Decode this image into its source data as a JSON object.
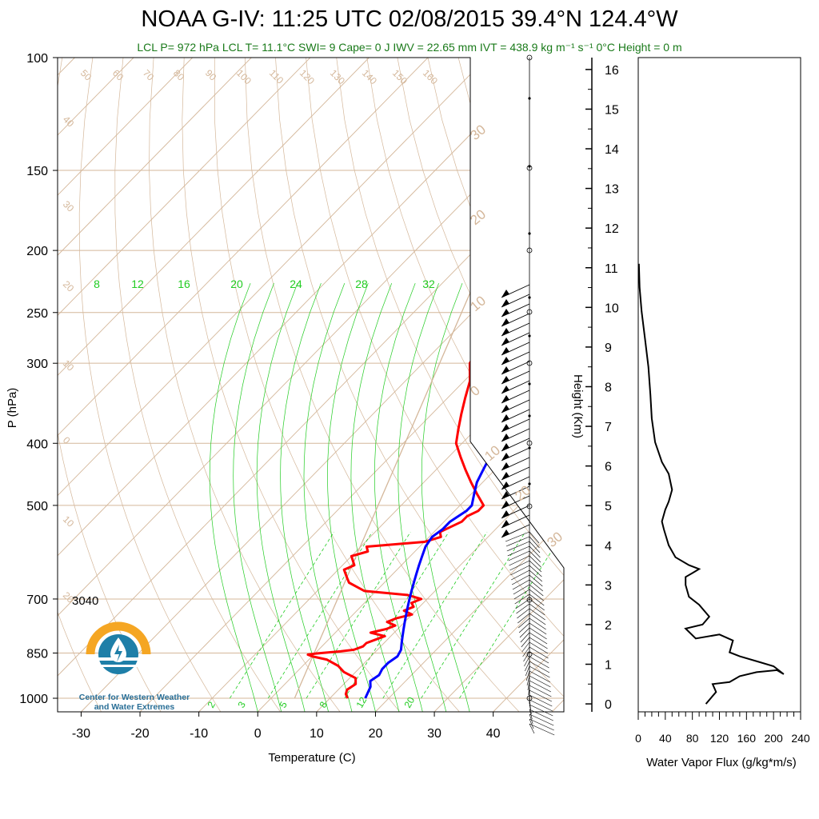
{
  "header": {
    "title": "NOAA G-IV: 11:25 UTC 02/08/2015  39.4°N 124.4°W",
    "subtitle": "LCL P= 972 hPa  LCL T= 11.1°C  SWI= 9  Cape= 0 J  IWV = 22.65 mm  IVT = 438.9 kg m⁻¹ s⁻¹  0°C Height = 0 m"
  },
  "logo": {
    "line1": "Center for Western Weather",
    "line2": "and Water Extremes"
  },
  "annotation_3040": "3040",
  "colors": {
    "temperature": "#ff0000",
    "dewpoint_or_virtual": "#0000ff",
    "isotherm": "#d4b79a",
    "mixing_ratio": "#22cc22",
    "logo_orange": "#f5a623",
    "logo_blue": "#1e7fa8"
  },
  "chart_data": [
    {
      "type": "line",
      "name": "skew-t",
      "xlabel": "Temperature (C)",
      "ylabel": "P (hPa)",
      "xlim": [
        -34,
        52
      ],
      "ylim": [
        1050,
        100
      ],
      "y_scale": "log",
      "grid": true,
      "x_ticks": [
        -30,
        -20,
        -10,
        0,
        10,
        20,
        30,
        40
      ],
      "x_tick_labels": [
        "-30",
        "-20",
        "-10",
        "0",
        "10",
        "20",
        "30",
        "40"
      ],
      "y_ticks": [
        100,
        150,
        200,
        250,
        300,
        400,
        500,
        700,
        850,
        1000
      ],
      "y_tick_labels": [
        "100",
        "150",
        "200",
        "250",
        "300",
        "400",
        "500",
        "700",
        "850",
        "1000"
      ],
      "top_isotherm_labels": [
        "50",
        "60",
        "70",
        "80",
        "90",
        "100",
        "110",
        "120",
        "130",
        "140",
        "150",
        "160"
      ],
      "left_isotherm_labels": [
        "40",
        "30",
        "20",
        "10",
        "0",
        "10",
        "20"
      ],
      "right_isotherm_labels": [
        "30",
        "20",
        "10",
        "0",
        "10",
        "20",
        "30"
      ],
      "mixing_ratio_labels_top": [
        "8",
        "12",
        "16",
        "20",
        "24",
        "28",
        "32"
      ],
      "mixing_ratio_labels_bottom": [
        "2",
        "3",
        "5",
        "8",
        "12",
        "20"
      ],
      "series": [
        {
          "color": "#ff0000",
          "p": [
            1000,
            985,
            970,
            950,
            930,
            910,
            890,
            870,
            860,
            855,
            852,
            850,
            845,
            840,
            830,
            820,
            810,
            800,
            790,
            780,
            770,
            760,
            750,
            740,
            730,
            720,
            710,
            700,
            690,
            680,
            670,
            660,
            650,
            640,
            630,
            620,
            610,
            600,
            590,
            580,
            570,
            560,
            550,
            540,
            530,
            520,
            510,
            500,
            480,
            460,
            440,
            420,
            400,
            380,
            360,
            340,
            320,
            300,
            285,
            275,
            268,
            262,
            255,
            245,
            235,
            225
          ],
          "t": [
            13,
            12,
            11.5,
            12,
            11,
            8,
            6,
            3,
            0,
            -1,
            0,
            1,
            4,
            6,
            7,
            7,
            8,
            9,
            6,
            8,
            9,
            7,
            8,
            10,
            8,
            9,
            8,
            9,
            6,
            -2,
            -4,
            -6,
            -7,
            -8,
            -9,
            -8,
            -9,
            -10,
            -8,
            -9,
            0,
            2,
            1,
            2,
            3,
            3,
            4,
            4,
            1,
            -2,
            -5,
            -8,
            -11,
            -13,
            -15,
            -17,
            -19,
            -22,
            -23,
            -24,
            -23,
            -21,
            -22,
            -21,
            -20,
            -19
          ]
        },
        {
          "color": "#0000ff",
          "p": [
            1000,
            980,
            960,
            940,
            920,
            900,
            880,
            860,
            840,
            820,
            800,
            780,
            760,
            740,
            720,
            700,
            680,
            660,
            640,
            620,
            600,
            580,
            560,
            545,
            530,
            520,
            510,
            500,
            480,
            460,
            440,
            420,
            400,
            380,
            360,
            340,
            320,
            300,
            290,
            285,
            280,
            275,
            270,
            260,
            250,
            240,
            230,
            225
          ],
          "t": [
            16,
            15.5,
            15,
            14,
            14.5,
            14,
            14,
            14.5,
            14,
            13,
            12,
            11,
            10,
            9,
            8,
            7,
            6,
            5,
            4,
            3,
            2,
            1,
            0.5,
            1,
            1,
            1.5,
            2,
            2,
            0.5,
            -1,
            -2,
            -3,
            -4,
            -5,
            -6,
            -7,
            -8,
            -9,
            -9.5,
            -9.5,
            -9,
            -8,
            -7,
            -6,
            -4,
            -3,
            -2,
            -2
          ]
        }
      ],
      "wind_barbs": "present at right edge of skew-t panel"
    },
    {
      "type": "line",
      "name": "water-vapor-flux",
      "xlabel": "Water Vapor Flux (g/kg*m/s)",
      "ylabel": "Height (Km)",
      "xlim": [
        0,
        240
      ],
      "ylim": [
        -0.2,
        16.3
      ],
      "x_ticks": [
        0,
        40,
        80,
        120,
        160,
        200,
        240
      ],
      "x_tick_labels": [
        "0",
        "40",
        "80",
        "120",
        "160",
        "200",
        "240"
      ],
      "y_ticks": [
        0,
        1,
        2,
        3,
        4,
        5,
        6,
        7,
        8,
        9,
        10,
        11,
        12,
        13,
        14,
        15,
        16
      ],
      "y_tick_labels": [
        "0",
        "1",
        "2",
        "3",
        "4",
        "5",
        "6",
        "7",
        "8",
        "9",
        "10",
        "11",
        "12",
        "13",
        "14",
        "15",
        "16"
      ],
      "x": [
        100,
        115,
        110,
        135,
        150,
        175,
        205,
        215,
        200,
        180,
        150,
        135,
        140,
        120,
        85,
        70,
        95,
        105,
        90,
        75,
        70,
        70,
        80,
        90,
        75,
        55,
        45,
        38,
        35,
        40,
        45,
        50,
        45,
        35,
        25,
        20,
        18,
        15,
        10,
        5,
        2,
        1
      ],
      "y": [
        0,
        0.3,
        0.5,
        0.55,
        0.7,
        0.8,
        0.85,
        0.75,
        0.95,
        1.05,
        1.2,
        1.3,
        1.6,
        1.75,
        1.65,
        1.9,
        2.0,
        2.2,
        2.5,
        2.7,
        3.0,
        3.2,
        3.3,
        3.4,
        3.5,
        3.7,
        4.0,
        4.4,
        4.6,
        4.9,
        5.1,
        5.4,
        5.8,
        6.1,
        6.6,
        7.2,
        7.8,
        8.5,
        9.2,
        9.9,
        10.5,
        11.1
      ]
    }
  ]
}
